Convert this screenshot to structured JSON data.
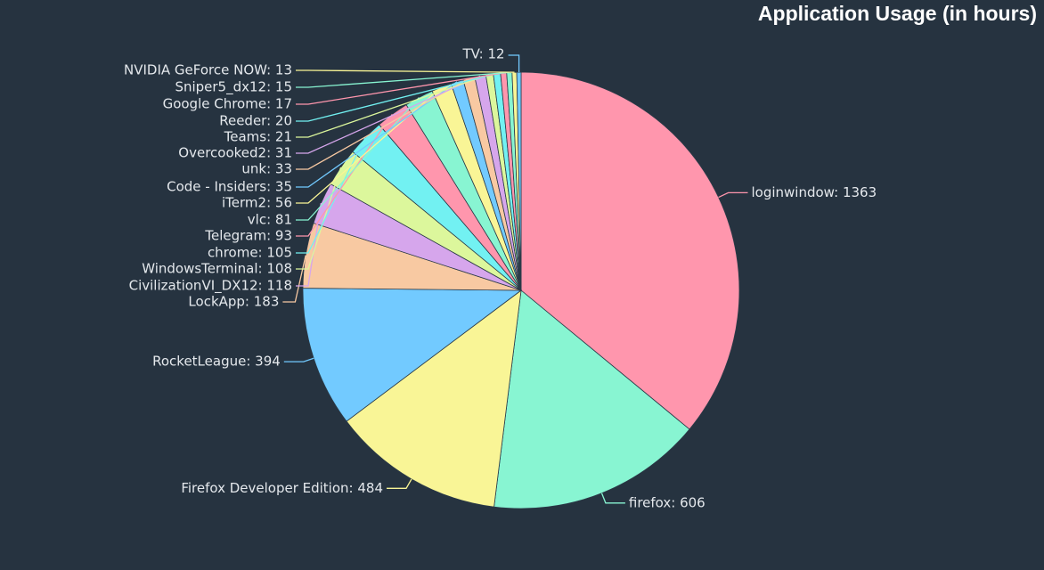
{
  "chart_data": {
    "type": "pie",
    "title": "Application Usage (in hours)",
    "legend": "none",
    "slices": [
      {
        "label": "loginwindow",
        "value": 1363,
        "color": "#ff96ad",
        "display": "loginwindow: 1363"
      },
      {
        "label": "firefox",
        "value": 606,
        "color": "#88f5d2",
        "display": "firefox: 606"
      },
      {
        "label": "Firefox Developer Edition",
        "value": 484,
        "color": "#f9f596",
        "display": "Firefox Developer Edition: 484"
      },
      {
        "label": "RocketLeague",
        "value": 394,
        "color": "#72caff",
        "display": "RocketLeague: 394"
      },
      {
        "label": "LockApp",
        "value": 183,
        "color": "#f8c9a2",
        "display": "LockApp: 183"
      },
      {
        "label": "CivilizationVI_DX12",
        "value": 118,
        "color": "#d6a6ec",
        "display": "CivilizationVI_DX12: 118"
      },
      {
        "label": "WindowsTerminal",
        "value": 108,
        "color": "#dcf79c",
        "display": "WindowsTerminal: 108"
      },
      {
        "label": "chrome",
        "value": 105,
        "color": "#72f1f2",
        "display": "chrome: 105"
      },
      {
        "label": "Telegram",
        "value": 93,
        "color": "#ff96ad",
        "display": "Telegram: 93"
      },
      {
        "label": "vlc",
        "value": 81,
        "color": "#88f5d2",
        "display": "vlc: 81"
      },
      {
        "label": "iTerm2",
        "value": 56,
        "color": "#f9f596",
        "display": "iTerm2: 56"
      },
      {
        "label": "Code - Insiders",
        "value": 35,
        "color": "#72caff",
        "display": "Code - Insiders: 35"
      },
      {
        "label": "unk",
        "value": 33,
        "color": "#f8c9a2",
        "display": "unk: 33"
      },
      {
        "label": "Overcooked2",
        "value": 31,
        "color": "#d6a6ec",
        "display": "Overcooked2: 31"
      },
      {
        "label": "Teams",
        "value": 21,
        "color": "#dcf79c",
        "display": "Teams: 21"
      },
      {
        "label": "Reeder",
        "value": 20,
        "color": "#72f1f2",
        "display": "Reeder: 20"
      },
      {
        "label": "Google Chrome",
        "value": 17,
        "color": "#ff96ad",
        "display": "Google Chrome: 17"
      },
      {
        "label": "Sniper5_dx12",
        "value": 15,
        "color": "#88f5d2",
        "display": "Sniper5_dx12: 15"
      },
      {
        "label": "NVIDIA GeForce NOW",
        "value": 13,
        "color": "#f9f596",
        "display": "NVIDIA GeForce NOW: 13"
      },
      {
        "label": "TV",
        "value": 12,
        "color": "#72caff",
        "display": "TV: 12"
      }
    ]
  }
}
